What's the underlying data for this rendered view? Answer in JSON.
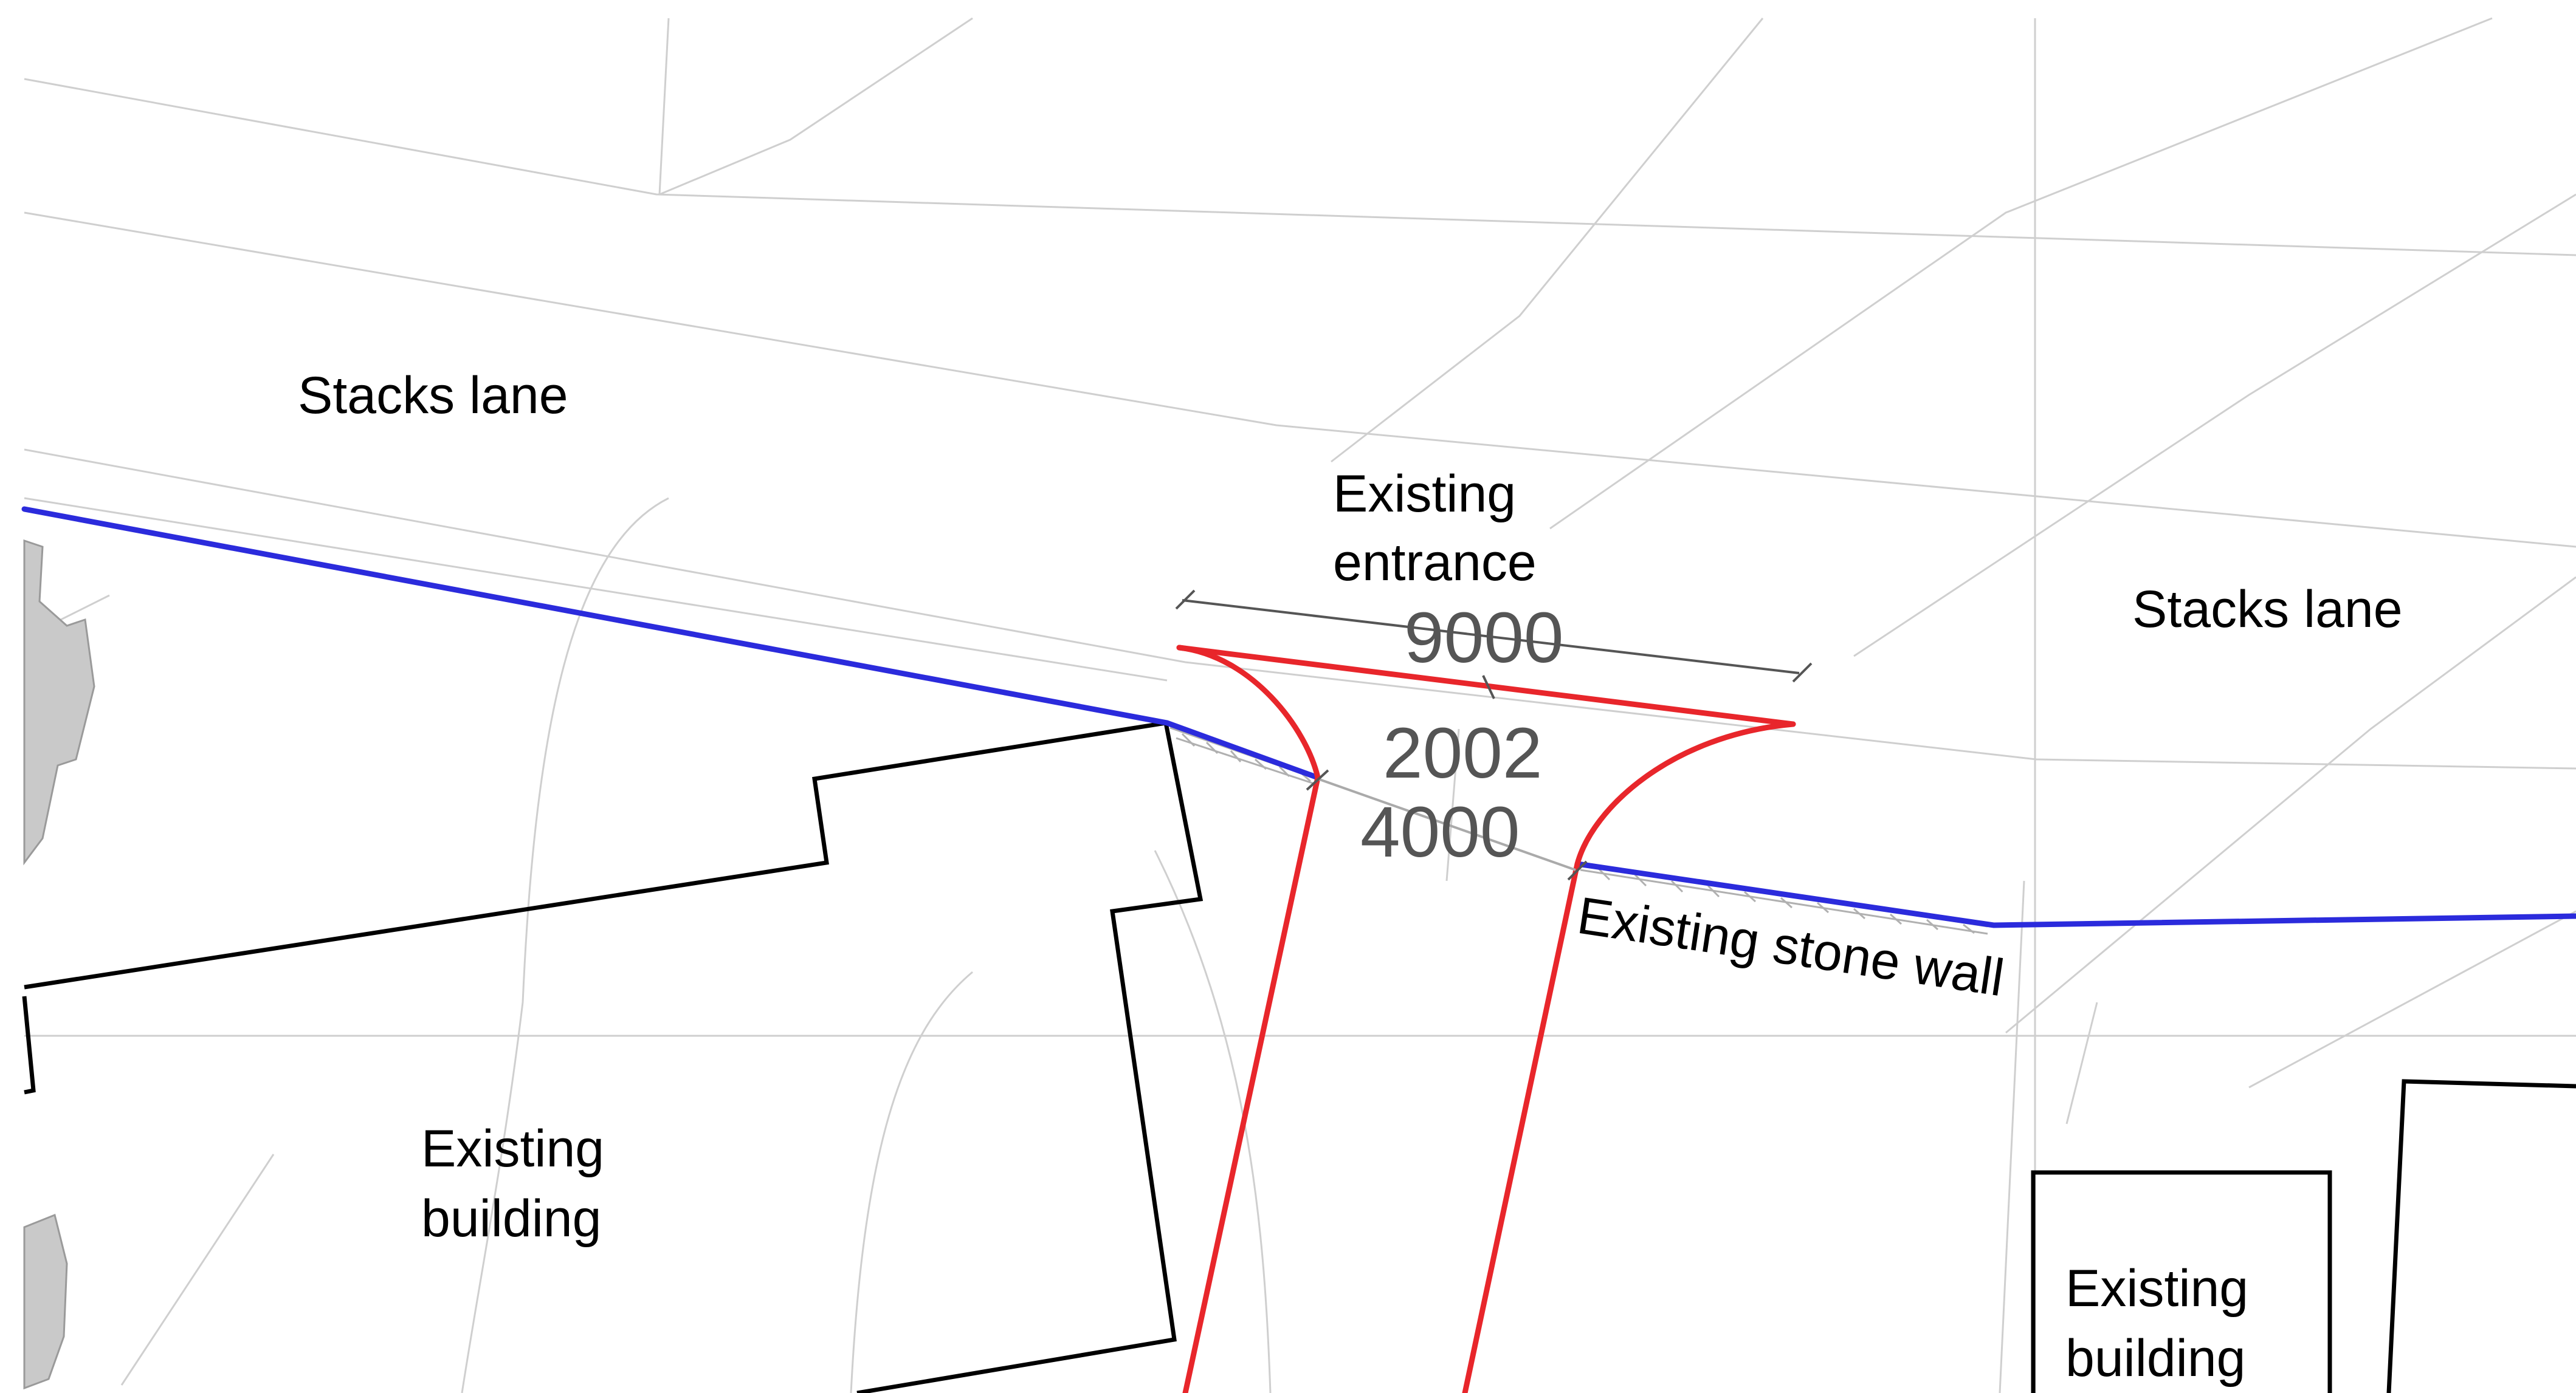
{
  "labels": {
    "road_west": "Stacks lane",
    "road_east": "Stacks lane",
    "entrance_line1": "Existing",
    "entrance_line2": "entrance",
    "wall": "Existing stone wall",
    "building_west_line1": "Existing",
    "building_west_line2": "building",
    "building_east_line1": "Existing",
    "building_east_line2": "building"
  },
  "dimensions": {
    "splay_width": "9000",
    "setback": "2002",
    "access_width": "4000"
  },
  "colors": {
    "boundary": "#2b2bdc",
    "proposed_access": "#e8262b",
    "building_outline": "#000000",
    "base_linework": "#c8c8c8",
    "dimension_text": "#555555",
    "hatch": "#b5b5b5"
  }
}
